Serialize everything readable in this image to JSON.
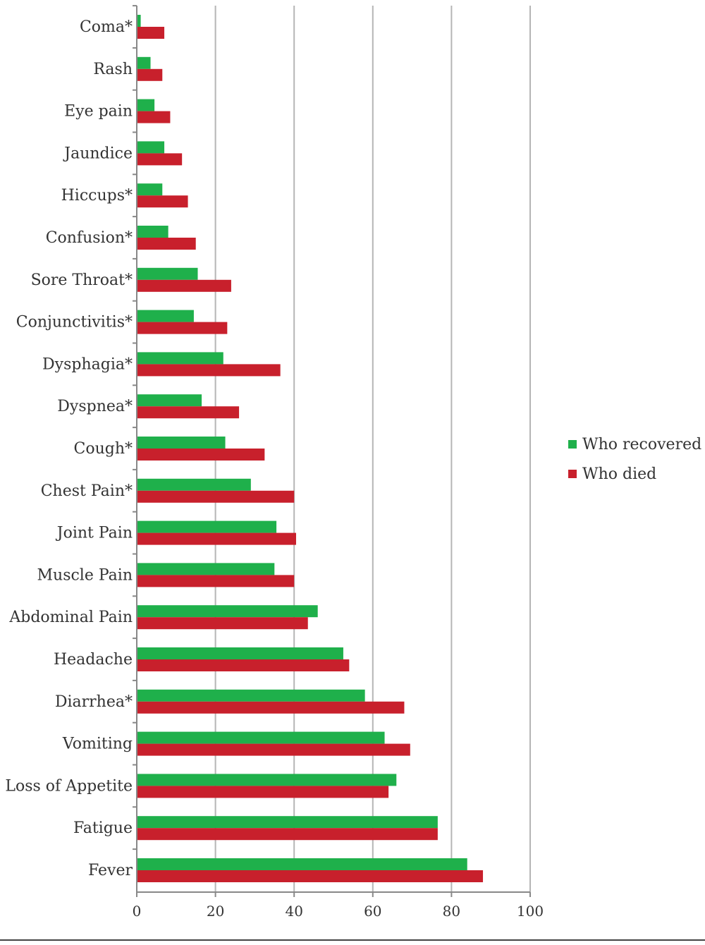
{
  "chart_data": {
    "type": "bar",
    "orientation": "horizontal",
    "categories": [
      "Coma*",
      "Rash",
      "Eye pain",
      "Jaundice",
      "Hiccups*",
      "Confusion*",
      "Sore Throat*",
      "Conjunctivitis*",
      "Dysphagia*",
      "Dyspnea*",
      "Cough*",
      "Chest Pain*",
      "Joint Pain",
      "Muscle Pain",
      "Abdominal Pain",
      "Headache",
      "Diarrhea*",
      "Vomiting",
      "Loss of Appetite",
      "Fatigue",
      "Fever"
    ],
    "series": [
      {
        "name": "Who recovered",
        "color": "#1fb04b",
        "values": [
          1,
          3.5,
          4.5,
          7,
          6.5,
          8,
          15.5,
          14.5,
          22,
          16.5,
          22.5,
          29,
          35.5,
          35,
          46,
          52.5,
          58,
          63,
          66,
          76.5,
          84
        ]
      },
      {
        "name": "Who died",
        "color": "#c8202c",
        "values": [
          7,
          6.5,
          8.5,
          11.5,
          13,
          15,
          24,
          23,
          36.5,
          26,
          32.5,
          40,
          40.5,
          40,
          43.5,
          54,
          68,
          69.5,
          64,
          76.5,
          88
        ]
      }
    ],
    "xlim": [
      0,
      100
    ],
    "xticks": [
      "0",
      "20",
      "40",
      "60",
      "80",
      "100"
    ],
    "grid": "vertical",
    "legend": "right"
  }
}
